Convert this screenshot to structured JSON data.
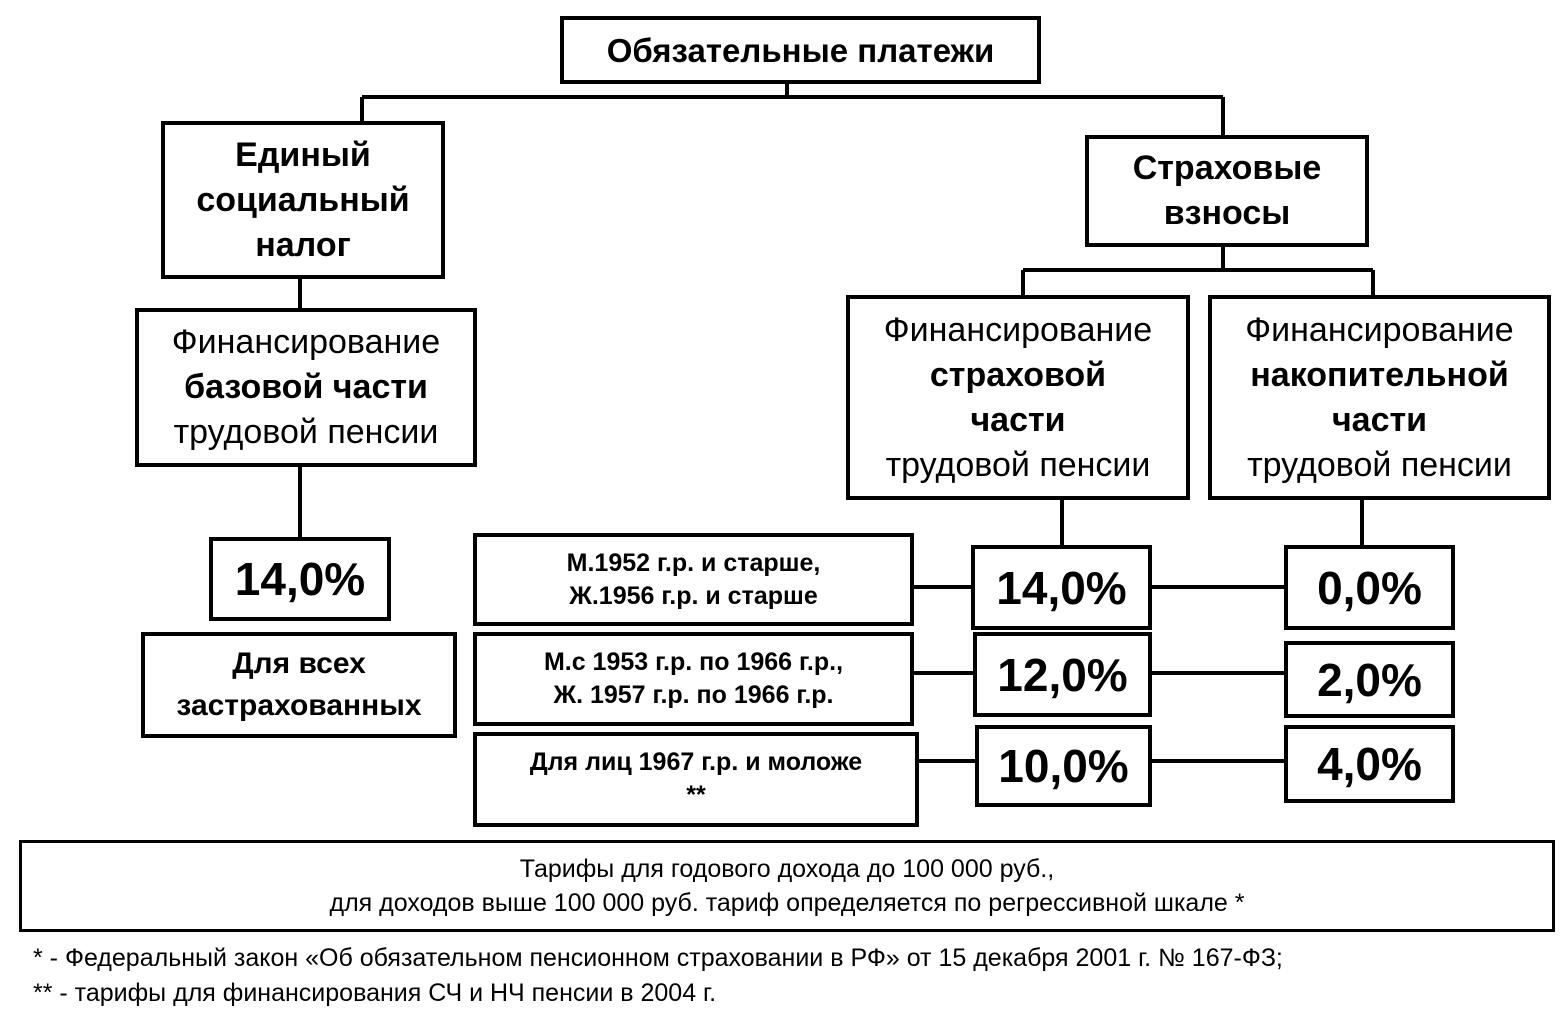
{
  "root": {
    "label": "Обязательные платежи"
  },
  "esn": {
    "label": "Единый социальный налог"
  },
  "insurance": {
    "label": "Страховые взносы"
  },
  "base_part": {
    "line1": "Финансирование",
    "line2": "базовой части",
    "line3": "трудовой пенсии"
  },
  "insurance_part": {
    "line1": "Финансирование",
    "line2": "страховой",
    "line3": "части",
    "line4": "трудовой пенсии"
  },
  "funded_part": {
    "line1": "Финансирование",
    "line2": "накопительной",
    "line3": "части",
    "line4": "трудовой пенсии"
  },
  "base_rate": {
    "value": "14,0%",
    "group": "Для всех застрахованных"
  },
  "groups": [
    {
      "line1": "М.1952 г.р. и старше,",
      "line2": "Ж.1956 г.р. и старше",
      "insurance_rate": "14,0%",
      "funded_rate": "0,0%"
    },
    {
      "line1": "М.с 1953 г.р. по 1966 г.р.,",
      "line2": "Ж. 1957 г.р. по 1966 г.р.",
      "insurance_rate": "12,0%",
      "funded_rate": "2,0%"
    },
    {
      "line1": "Для лиц 1967 г.р. и моложе",
      "line2": "**",
      "insurance_rate": "10,0%",
      "funded_rate": "4,0%"
    }
  ],
  "tariff_note": {
    "line1": "Тарифы для годового дохода до 100 000 руб.,",
    "line2": "для доходов выше 100 000 руб. тариф определяется по регрессивной шкале *"
  },
  "footnotes": [
    "* - Федеральный закон «Об обязательном пенсионном страховании в РФ» от 15 декабря 2001 г. № 167-ФЗ;",
    "** - тарифы для финансирования СЧ и НЧ  пенсии в 2004 г."
  ]
}
